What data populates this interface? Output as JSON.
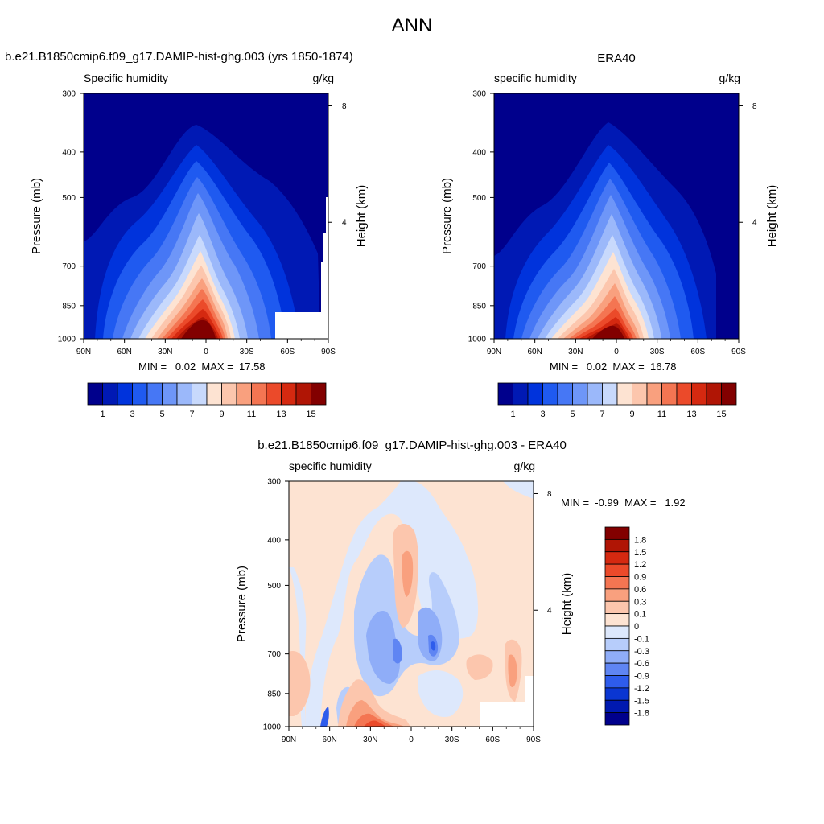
{
  "page_title": "ANN",
  "panels": [
    {
      "case_title": "b.e21.B1850cmip6.f09_g17.DAMIP-hist-ghg.003 (yrs 1850-1874)",
      "left_label": "Specific humidity",
      "right_label": "g/kg",
      "minmax": "MIN =   0.02  MAX =  17.58"
    },
    {
      "case_title": "ERA40",
      "left_label": "specific humidity",
      "right_label": "g/kg",
      "minmax": "MIN =   0.02  MAX =  16.78"
    },
    {
      "case_title": "b.e21.B1850cmip6.f09_g17.DAMIP-hist-ghg.003 - ERA40",
      "left_label": "specific humidity",
      "right_label": "g/kg",
      "minmax": "MIN =  -0.99  MAX =   1.92"
    }
  ],
  "chart_data": [
    {
      "type": "heatmap",
      "title": "b.e21.B1850cmip6.f09_g17.DAMIP-hist-ghg.003 (yrs 1850-1874)",
      "variable": "Specific humidity",
      "units": "g/kg",
      "xlabel": "",
      "ylabel": "Pressure (mb)",
      "ylabel_right": "Height (km)",
      "x_ticks": [
        "90N",
        "60N",
        "30N",
        "0",
        "30S",
        "60S",
        "90S"
      ],
      "y_ticks": [
        "300",
        "400",
        "500",
        "700",
        "850",
        "1000"
      ],
      "y_right_ticks": [
        "8",
        "4"
      ],
      "contour_levels": [
        1,
        2,
        3,
        4,
        5,
        6,
        7,
        8,
        9,
        10,
        11,
        12,
        13,
        14,
        15
      ],
      "min": 0.02,
      "max": 17.58
    },
    {
      "type": "heatmap",
      "title": "ERA40",
      "variable": "specific humidity",
      "units": "g/kg",
      "xlabel": "",
      "ylabel": "Pressure (mb)",
      "ylabel_right": "Height (km)",
      "x_ticks": [
        "90N",
        "60N",
        "30N",
        "0",
        "30S",
        "60S",
        "90S"
      ],
      "y_ticks": [
        "300",
        "400",
        "500",
        "700",
        "850",
        "1000"
      ],
      "y_right_ticks": [
        "8",
        "4"
      ],
      "contour_levels": [
        1,
        2,
        3,
        4,
        5,
        6,
        7,
        8,
        9,
        10,
        11,
        12,
        13,
        14,
        15
      ],
      "min": 0.02,
      "max": 16.78
    },
    {
      "type": "heatmap",
      "title": "b.e21.B1850cmip6.f09_g17.DAMIP-hist-ghg.003 - ERA40",
      "variable": "specific humidity",
      "units": "g/kg",
      "xlabel": "",
      "ylabel": "Pressure (mb)",
      "ylabel_right": "Height (km)",
      "x_ticks": [
        "90N",
        "60N",
        "30N",
        "0",
        "30S",
        "60S",
        "90S"
      ],
      "y_ticks": [
        "300",
        "400",
        "500",
        "700",
        "850",
        "1000"
      ],
      "y_right_ticks": [
        "8",
        "4"
      ],
      "contour_levels": [
        -1.8,
        -1.5,
        -1.2,
        -0.9,
        -0.6,
        -0.3,
        -0.1,
        0,
        0.1,
        0.3,
        0.6,
        0.9,
        1.2,
        1.5,
        1.8
      ],
      "min": -0.99,
      "max": 1.92
    }
  ],
  "colorbars": {
    "abs_labels": [
      "1",
      "3",
      "5",
      "7",
      "9",
      "11",
      "13",
      "15"
    ],
    "abs_colors": [
      "#00008c",
      "#0019b4",
      "#0033dc",
      "#1f5af0",
      "#4677f5",
      "#6e96f8",
      "#9bb8fa",
      "#c8d9fc",
      "#fde3d2",
      "#fcc6ad",
      "#f9a07e",
      "#f47552",
      "#eb4a2a",
      "#d52910",
      "#b01505",
      "#820000"
    ],
    "diff_labels": [
      "1.8",
      "1.5",
      "1.2",
      "0.9",
      "0.6",
      "0.3",
      "0.1",
      "0",
      "-0.1",
      "-0.3",
      "-0.6",
      "-0.9",
      "-1.2",
      "-1.5",
      "-1.8"
    ],
    "diff_colors": [
      "#820000",
      "#b01505",
      "#d52910",
      "#eb4a2a",
      "#f47552",
      "#f9a07e",
      "#fcc6ad",
      "#fde3d2",
      "#dde8fc",
      "#b7cdfb",
      "#8fadf8",
      "#5f85f3",
      "#2e5cec",
      "#0a36d2",
      "#0019b0",
      "#00008c"
    ]
  }
}
